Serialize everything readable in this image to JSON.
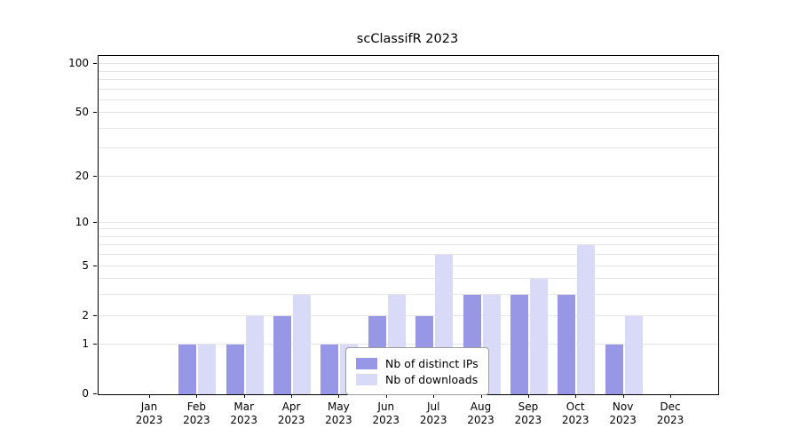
{
  "title": "scClassifR 2023",
  "chart_data": {
    "type": "bar",
    "title": "scClassifR 2023",
    "categories": [
      "Jan 2023",
      "Feb 2023",
      "Mar 2023",
      "Apr 2023",
      "May 2023",
      "Jun 2023",
      "Jul 2023",
      "Aug 2023",
      "Sep 2023",
      "Oct 2023",
      "Nov 2023",
      "Dec 2023"
    ],
    "month_labels": [
      "Jan",
      "Feb",
      "Mar",
      "Apr",
      "May",
      "Jun",
      "Jul",
      "Aug",
      "Sep",
      "Oct",
      "Nov",
      "Dec"
    ],
    "year_label": "2023",
    "series": [
      {
        "name": "Nb of distinct IPs",
        "color": "#9797e6",
        "values": [
          0,
          1,
          1,
          2,
          1,
          2,
          2,
          3,
          3,
          3,
          1,
          0
        ]
      },
      {
        "name": "Nb of downloads",
        "color": "#d9d9f8",
        "values": [
          0,
          1,
          2,
          3,
          1,
          3,
          6,
          3,
          4,
          7,
          2,
          0
        ]
      }
    ],
    "yscale": "log1p",
    "yticks": [
      0,
      1,
      2,
      5,
      10,
      20,
      50,
      100
    ],
    "minor_grid_values": [
      1,
      2,
      3,
      4,
      5,
      6,
      7,
      8,
      9,
      10,
      20,
      30,
      40,
      50,
      60,
      70,
      80,
      90,
      100
    ],
    "ylim": [
      0,
      112
    ],
    "grid": true,
    "legend_position": "bottom-center"
  },
  "legend": {
    "items": [
      "Nb of distinct IPs",
      "Nb of downloads"
    ]
  }
}
